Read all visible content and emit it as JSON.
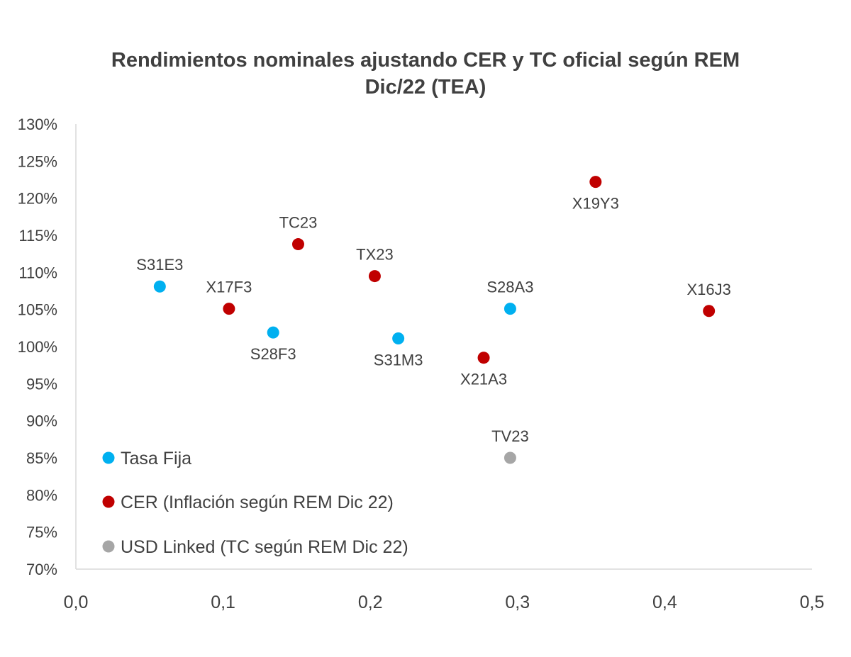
{
  "chart_data": {
    "type": "scatter",
    "title_line1": "Rendimientos nominales ajustando CER y TC oficial según REM",
    "title_line2": "Dic/22 (TEA)",
    "xlim": [
      0,
      0.5
    ],
    "ylim": [
      70,
      130
    ],
    "x_ticks": [
      "0,0",
      "0,1",
      "0,2",
      "0,3",
      "0,4",
      "0,5"
    ],
    "y_ticks": [
      "70%",
      "75%",
      "80%",
      "85%",
      "90%",
      "95%",
      "100%",
      "105%",
      "110%",
      "115%",
      "120%",
      "125%",
      "130%"
    ],
    "grid": false,
    "legend_position": "bottom-left",
    "series": [
      {
        "name": "Tasa Fija",
        "color": "#00B0F0",
        "points": [
          {
            "label": "S31E3",
            "x": 0.057,
            "y": 108.1,
            "label_pos": "above"
          },
          {
            "label": "S28F3",
            "x": 0.134,
            "y": 101.9,
            "label_pos": "below"
          },
          {
            "label": "S31M3",
            "x": 0.219,
            "y": 101.1,
            "label_pos": "below"
          },
          {
            "label": "S28A3",
            "x": 0.295,
            "y": 105.1,
            "label_pos": "above"
          }
        ]
      },
      {
        "name": "CER (Inflación según REM Dic 22)",
        "color": "#C00000",
        "points": [
          {
            "label": "X17F3",
            "x": 0.104,
            "y": 105.1,
            "label_pos": "above"
          },
          {
            "label": "TC23",
            "x": 0.151,
            "y": 113.8,
            "label_pos": "above"
          },
          {
            "label": "TX23",
            "x": 0.203,
            "y": 109.5,
            "label_pos": "above"
          },
          {
            "label": "X21A3",
            "x": 0.277,
            "y": 98.5,
            "label_pos": "below"
          },
          {
            "label": "X19Y3",
            "x": 0.353,
            "y": 122.2,
            "label_pos": "below"
          },
          {
            "label": "X16J3",
            "x": 0.43,
            "y": 104.8,
            "label_pos": "above"
          }
        ]
      },
      {
        "name": "USD Linked (TC según REM Dic 22)",
        "color": "#A6A6A6",
        "points": [
          {
            "label": "TV23",
            "x": 0.295,
            "y": 85.0,
            "label_pos": "above"
          }
        ]
      }
    ]
  }
}
